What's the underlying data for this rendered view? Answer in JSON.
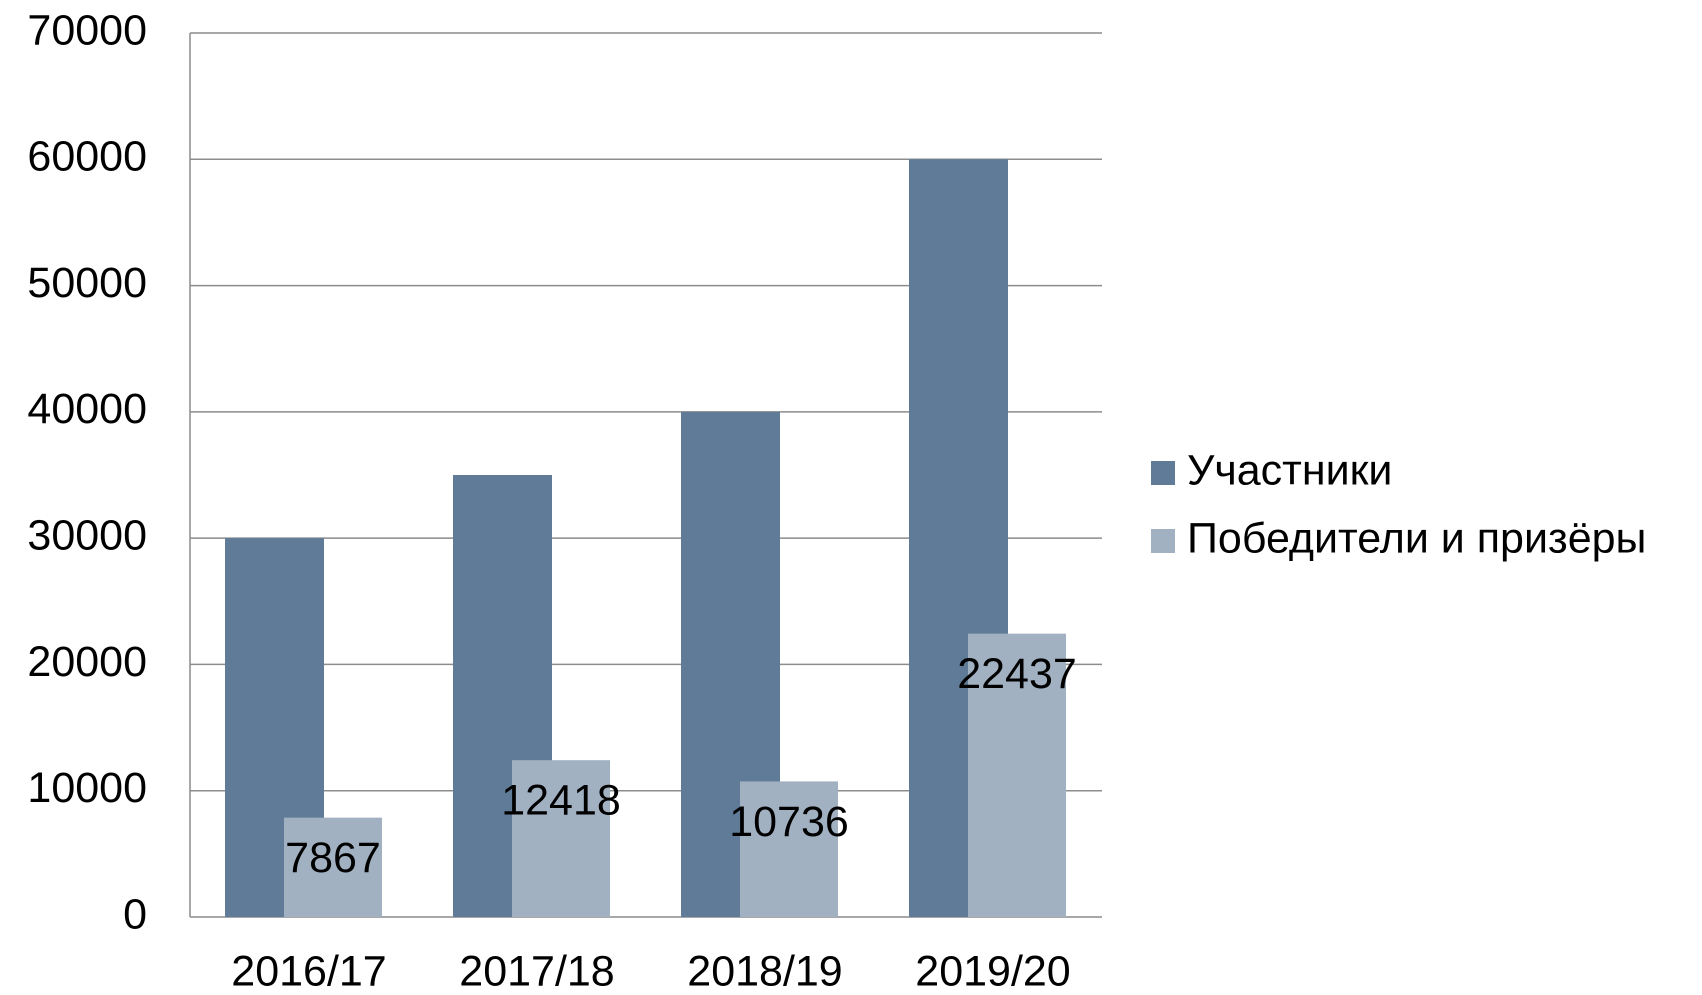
{
  "chart_data": {
    "type": "bar",
    "categories": [
      "2016/17",
      "2017/18",
      "2018/19",
      "2019/20"
    ],
    "series": [
      {
        "name": "Участники",
        "color": "#5f7b98",
        "values": [
          30000,
          35000,
          40000,
          60000
        ]
      },
      {
        "name": "Победители и призёры",
        "color": "#a2b1c2",
        "values": [
          7867,
          12418,
          10736,
          22437
        ],
        "data_labels": true
      }
    ],
    "ylim": [
      0,
      70000
    ],
    "yticks": [
      0,
      10000,
      20000,
      30000,
      40000,
      50000,
      60000,
      70000
    ],
    "grid": true,
    "legend": "right"
  }
}
